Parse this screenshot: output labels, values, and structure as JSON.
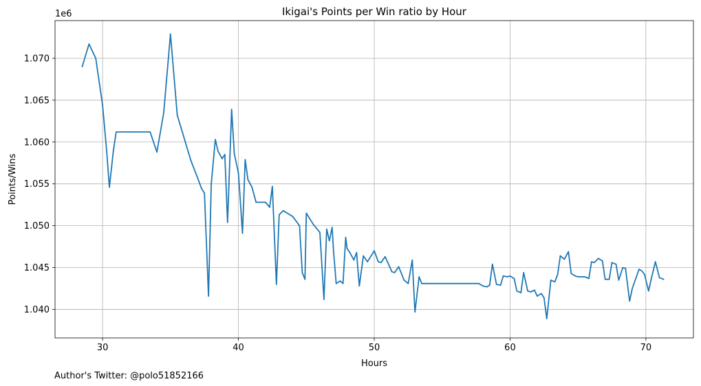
{
  "chart_data": {
    "type": "line",
    "title": "Ikigai's Points per Win ratio by Hour",
    "xlabel": "Hours",
    "ylabel": "Points/Wins",
    "y_offset_label": "1e6",
    "xlim": [
      26.5,
      73.5
    ],
    "ylim": [
      1.0366,
      1.0745
    ],
    "x_ticks": [
      30,
      40,
      50,
      60,
      70
    ],
    "x_tick_labels": [
      "30",
      "40",
      "50",
      "60",
      "70"
    ],
    "y_ticks": [
      1.04,
      1.045,
      1.05,
      1.055,
      1.06,
      1.065,
      1.07
    ],
    "y_tick_labels": [
      "1.040",
      "1.045",
      "1.050",
      "1.055",
      "1.060",
      "1.065",
      "1.070"
    ],
    "grid": true,
    "color": "#1f77b4",
    "series": [
      {
        "x": [
          28.5,
          29.0,
          29.5,
          30.0,
          30.3,
          30.5,
          30.8,
          31.0,
          31.5,
          32.0,
          33.0,
          33.5,
          34.0,
          34.5,
          35.0,
          35.3,
          35.5,
          36.0,
          36.5,
          37.0,
          37.3,
          37.5,
          37.8,
          38.0,
          38.3,
          38.5,
          38.8,
          39.0,
          39.2,
          39.5,
          39.7,
          40.0,
          40.3,
          40.5,
          40.7,
          41.0,
          41.3,
          41.5,
          42.0,
          42.3,
          42.5,
          42.8,
          43.0,
          43.3,
          43.7,
          44.0,
          44.5,
          44.7,
          44.9,
          45.0,
          45.5,
          46.0,
          46.3,
          46.5,
          46.7,
          46.9,
          47.0,
          47.2,
          47.5,
          47.7,
          47.9,
          48.0,
          48.2,
          48.5,
          48.7,
          48.9,
          49.2,
          49.5,
          50.0,
          50.3,
          50.5,
          50.8,
          51.0,
          51.3,
          51.5,
          51.8,
          52.2,
          52.5,
          52.8,
          53.0,
          53.3,
          53.5,
          53.7,
          54.0,
          57.0,
          57.7,
          58.0,
          58.3,
          58.5,
          58.7,
          59.0,
          59.3,
          59.5,
          59.8,
          60.0,
          60.3,
          60.5,
          60.8,
          61.0,
          61.3,
          61.5,
          61.8,
          62.0,
          62.3,
          62.5,
          62.7,
          63.0,
          63.3,
          63.5,
          63.7,
          64.0,
          64.3,
          64.5,
          64.8,
          65.0,
          65.3,
          65.5,
          65.8,
          66.0,
          66.2,
          66.5,
          66.8,
          67.0,
          67.3,
          67.5,
          67.8,
          68.0,
          68.3,
          68.5,
          68.8,
          69.0,
          69.5,
          69.7,
          69.9,
          70.2,
          70.4,
          70.7,
          71.0,
          71.3
        ],
        "y": [
          1.069,
          1.0717,
          1.07,
          1.0644,
          1.059,
          1.0546,
          1.059,
          1.0612,
          1.0612,
          1.0612,
          1.0612,
          1.0612,
          1.0588,
          1.0635,
          1.0729,
          1.067,
          1.0632,
          1.0605,
          1.0578,
          1.0557,
          1.0544,
          1.0539,
          1.0416,
          1.055,
          1.0603,
          1.0589,
          1.058,
          1.0585,
          1.0504,
          1.0639,
          1.0586,
          1.0563,
          1.0491,
          1.0579,
          1.0555,
          1.0546,
          1.0528,
          1.0528,
          1.0528,
          1.0522,
          1.0547,
          1.043,
          1.0513,
          1.0518,
          1.0514,
          1.0511,
          1.05,
          1.0444,
          1.0436,
          1.0515,
          1.0502,
          1.0492,
          1.0412,
          1.0496,
          1.0482,
          1.0498,
          1.047,
          1.0431,
          1.0434,
          1.0431,
          1.0486,
          1.0473,
          1.0468,
          1.0459,
          1.0468,
          1.0428,
          1.0464,
          1.0457,
          1.047,
          1.0457,
          1.0456,
          1.0463,
          1.0456,
          1.0445,
          1.0444,
          1.0451,
          1.0435,
          1.0431,
          1.0459,
          1.0397,
          1.0439,
          1.0431,
          1.0431,
          1.0431,
          1.0431,
          1.0431,
          1.0428,
          1.0427,
          1.0429,
          1.0454,
          1.043,
          1.0429,
          1.044,
          1.0439,
          1.044,
          1.0437,
          1.0422,
          1.042,
          1.0444,
          1.0422,
          1.0421,
          1.0423,
          1.0416,
          1.0419,
          1.0414,
          1.0389,
          1.0435,
          1.0433,
          1.0442,
          1.0464,
          1.046,
          1.0469,
          1.0443,
          1.044,
          1.0439,
          1.0439,
          1.0439,
          1.0437,
          1.0457,
          1.0456,
          1.0461,
          1.0458,
          1.0436,
          1.0436,
          1.0456,
          1.0454,
          1.0435,
          1.045,
          1.0449,
          1.041,
          1.0425,
          1.0448,
          1.0446,
          1.0442,
          1.0422,
          1.0437,
          1.0457,
          1.0438,
          1.0436
        ]
      }
    ]
  },
  "footer": {
    "text": "Author's Twitter: @polo51852166"
  }
}
